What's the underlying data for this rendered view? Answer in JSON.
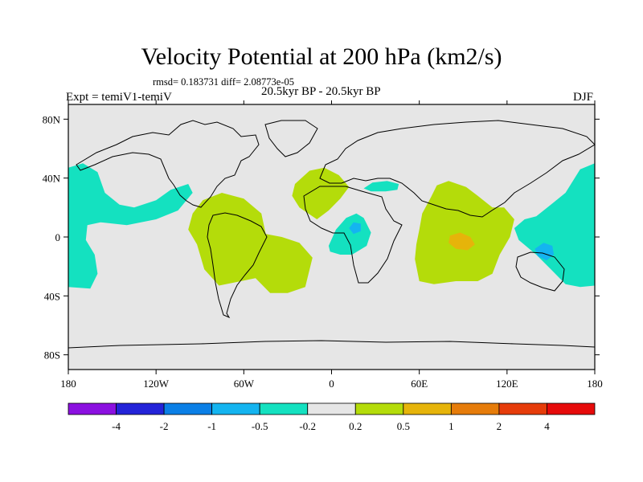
{
  "header": {
    "title": "Velocity Potential at 200 hPa (km2/s)",
    "stats": "rmsd= 0.183731  diff= 2.08773e-05",
    "experiment": "Expt = temiV1-temiV",
    "period": "20.5kyr BP - 20.5kyr BP",
    "season": "DJF"
  },
  "chart_data": {
    "type": "heatmap",
    "title": "Velocity Potential at 200 hPa (km2/s)",
    "xlabel": "",
    "ylabel": "",
    "xlim": [
      -180,
      180
    ],
    "ylim": [
      -90,
      90
    ],
    "x_ticks": [
      {
        "value": -180,
        "label": "180"
      },
      {
        "value": -120,
        "label": "120W"
      },
      {
        "value": -60,
        "label": "60W"
      },
      {
        "value": 0,
        "label": "0"
      },
      {
        "value": 60,
        "label": "60E"
      },
      {
        "value": 120,
        "label": "120E"
      },
      {
        "value": 180,
        "label": "180"
      }
    ],
    "y_ticks": [
      {
        "value": 80,
        "label": "80N"
      },
      {
        "value": 40,
        "label": "40N"
      },
      {
        "value": 0,
        "label": "0"
      },
      {
        "value": -40,
        "label": "40S"
      },
      {
        "value": -80,
        "label": "80S"
      }
    ],
    "colorbar": {
      "levels": [
        -4,
        -2,
        -1,
        -0.5,
        -0.2,
        0.2,
        0.5,
        1,
        2,
        4
      ],
      "labels": [
        "-4",
        "-2",
        "-1",
        "-0.5",
        "-0.2",
        "0.2",
        "0.5",
        "1",
        "2",
        "4"
      ],
      "colors": [
        "#8b10e0",
        "#2323d8",
        "#0a7fe6",
        "#14b4f0",
        "#14e1c0",
        "#e6e6e6",
        "#b4dc0a",
        "#e6b40a",
        "#e67c0a",
        "#e63c0a",
        "#e60a0a"
      ]
    },
    "regions": [
      {
        "name": "east-pacific-negative",
        "level": "-0.5 to -0.2",
        "points": [
          [
            -180,
            47
          ],
          [
            -170,
            50
          ],
          [
            -160,
            44
          ],
          [
            -155,
            30
          ],
          [
            -145,
            22
          ],
          [
            -135,
            20
          ],
          [
            -120,
            25
          ],
          [
            -110,
            32
          ],
          [
            -98,
            36
          ],
          [
            -95,
            30
          ],
          [
            -105,
            18
          ],
          [
            -120,
            12
          ],
          [
            -140,
            8
          ],
          [
            -158,
            10
          ],
          [
            -167,
            8
          ],
          [
            -168,
            -2
          ],
          [
            -162,
            -12
          ],
          [
            -160,
            -25
          ],
          [
            -165,
            -35
          ],
          [
            -180,
            -34
          ]
        ]
      },
      {
        "name": "west-pacific-negative",
        "level": "-0.5 to -0.2",
        "points": [
          [
            180,
            50
          ],
          [
            170,
            46
          ],
          [
            160,
            30
          ],
          [
            150,
            22
          ],
          [
            140,
            14
          ],
          [
            132,
            12
          ],
          [
            125,
            6
          ],
          [
            128,
            -2
          ],
          [
            140,
            -12
          ],
          [
            150,
            -22
          ],
          [
            160,
            -32
          ],
          [
            170,
            -34
          ],
          [
            180,
            -33
          ]
        ]
      },
      {
        "name": "africa-negative",
        "level": "-0.5 to -0.2",
        "points": [
          [
            -2,
            -6
          ],
          [
            3,
            5
          ],
          [
            10,
            13
          ],
          [
            17,
            16
          ],
          [
            22,
            13
          ],
          [
            27,
            3
          ],
          [
            24,
            -6
          ],
          [
            14,
            -12
          ],
          [
            6,
            -12
          ],
          [
            -1,
            -10
          ]
        ]
      },
      {
        "name": "mediterranean-negative",
        "level": "-0.5 to -0.2",
        "points": [
          [
            22,
            33
          ],
          [
            28,
            37
          ],
          [
            38,
            38
          ],
          [
            46,
            36
          ],
          [
            45,
            32
          ],
          [
            37,
            31
          ],
          [
            27,
            31
          ]
        ]
      },
      {
        "name": "south-america-positive",
        "level": "0.2 to 0.5",
        "points": [
          [
            -95,
            16
          ],
          [
            -88,
            25
          ],
          [
            -75,
            30
          ],
          [
            -60,
            26
          ],
          [
            -48,
            16
          ],
          [
            -45,
            2
          ],
          [
            -34,
            0
          ],
          [
            -22,
            -4
          ],
          [
            -13,
            -14
          ],
          [
            -18,
            -34
          ],
          [
            -30,
            -38
          ],
          [
            -42,
            -38
          ],
          [
            -52,
            -28
          ],
          [
            -62,
            -30
          ],
          [
            -77,
            -33
          ],
          [
            -87,
            -22
          ],
          [
            -92,
            -5
          ],
          [
            -98,
            5
          ]
        ]
      },
      {
        "name": "north-africa-positive",
        "level": "0.2 to 0.5",
        "points": [
          [
            -25,
            36
          ],
          [
            -15,
            45
          ],
          [
            -5,
            47
          ],
          [
            5,
            42
          ],
          [
            12,
            34
          ],
          [
            6,
            26
          ],
          [
            -2,
            18
          ],
          [
            -10,
            12
          ],
          [
            -22,
            20
          ],
          [
            -27,
            28
          ]
        ]
      },
      {
        "name": "indian-ocean-positive",
        "level": "0.2 to 0.5",
        "points": [
          [
            68,
            27
          ],
          [
            72,
            35
          ],
          [
            80,
            38
          ],
          [
            92,
            34
          ],
          [
            100,
            28
          ],
          [
            110,
            20
          ],
          [
            118,
            20
          ],
          [
            125,
            12
          ],
          [
            122,
            0
          ],
          [
            115,
            -12
          ],
          [
            110,
            -25
          ],
          [
            100,
            -30
          ],
          [
            85,
            -30
          ],
          [
            70,
            -32
          ],
          [
            60,
            -30
          ],
          [
            57,
            -15
          ],
          [
            58,
            -5
          ],
          [
            60,
            5
          ],
          [
            62,
            16
          ]
        ]
      },
      {
        "name": "indian-ocean-core",
        "level": "0.5 to 1",
        "points": [
          [
            81,
            1
          ],
          [
            88,
            3
          ],
          [
            95,
            0
          ],
          [
            98,
            -5
          ],
          [
            93,
            -9
          ],
          [
            85,
            -8
          ],
          [
            80,
            -4
          ]
        ]
      },
      {
        "name": "west-pacific-core",
        "level": "-1 to -0.5",
        "points": [
          [
            139,
            -8
          ],
          [
            145,
            -4
          ],
          [
            151,
            -6
          ],
          [
            152,
            -12
          ],
          [
            147,
            -16
          ],
          [
            141,
            -13
          ]
        ]
      },
      {
        "name": "africa-core",
        "level": "-1 to -0.5",
        "points": [
          [
            12,
            6
          ],
          [
            15,
            10
          ],
          [
            20,
            9
          ],
          [
            20,
            4
          ],
          [
            15,
            2
          ]
        ]
      }
    ]
  }
}
